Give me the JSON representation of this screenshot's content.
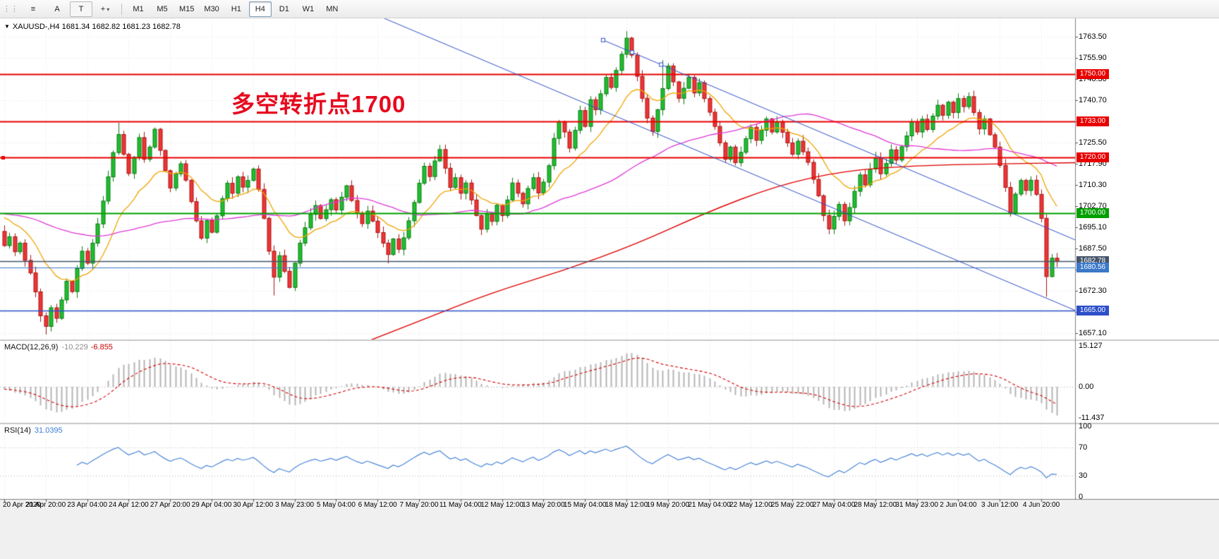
{
  "toolbar": {
    "grip_glyph": "⋮⋮",
    "tools": [
      {
        "name": "charts-list-icon",
        "glyph": "≡"
      },
      {
        "name": "cursor-tool-button",
        "glyph": "A"
      },
      {
        "name": "text-tool-button",
        "glyph": "T",
        "boxed": true
      },
      {
        "name": "crosshair-tool-button",
        "glyph": "+",
        "caret": "▾"
      }
    ],
    "timeframes": [
      "M1",
      "M5",
      "M15",
      "M30",
      "H1",
      "H4",
      "D1",
      "W1",
      "MN"
    ],
    "active_timeframe": "H4"
  },
  "chart": {
    "symbol_readout": "XAUUSD-,H4  1681.34 1682.82 1681.23 1682.78",
    "dropdown_glyph": "▼",
    "annotation": {
      "text": "多空转折点1700",
      "color": "#e60a1e"
    }
  },
  "chart_data": {
    "type": "candlestick",
    "symbol": "XAUUSD-",
    "period": "H4",
    "current_ohlc": {
      "open": 1681.34,
      "high": 1682.82,
      "low": 1681.23,
      "close": 1682.78
    },
    "open_first": 1693.5,
    "closes": [
      1688.4,
      1691.6,
      1686.2,
      1689.3,
      1683.1,
      1678.6,
      1671.8,
      1663.2,
      1659.4,
      1666.1,
      1662.3,
      1668.9,
      1675.6,
      1671.9,
      1680.2,
      1686.4,
      1682.1,
      1689.3,
      1696.2,
      1704.4,
      1713.1,
      1721.8,
      1728.3,
      1721.2,
      1714.3,
      1720.1,
      1727.2,
      1719.4,
      1723.8,
      1730.2,
      1722.6,
      1715.3,
      1709.1,
      1714.2,
      1717.8,
      1711.9,
      1704.2,
      1697.3,
      1691.1,
      1697.4,
      1693.2,
      1699.1,
      1705.3,
      1710.8,
      1707.2,
      1713.1,
      1709.4,
      1711.8,
      1715.9,
      1708.6,
      1698.2,
      1686.4,
      1677.1,
      1684.8,
      1679.2,
      1673.4,
      1682.1,
      1689.3,
      1694.8,
      1699.6,
      1702.8,
      1698.1,
      1701.3,
      1704.9,
      1701.2,
      1705.8,
      1709.9,
      1704.6,
      1700.1,
      1696.3,
      1700.8,
      1697.2,
      1693.1,
      1689.3,
      1685.2,
      1690.8,
      1687.1,
      1691.2,
      1697.3,
      1703.9,
      1710.8,
      1716.9,
      1713.2,
      1718.8,
      1722.9,
      1716.2,
      1709.3,
      1712.8,
      1707.2,
      1710.9,
      1704.8,
      1699.2,
      1694.3,
      1699.8,
      1697.1,
      1702.9,
      1699.2,
      1704.8,
      1710.9,
      1707.2,
      1703.4,
      1708.9,
      1712.8,
      1707.3,
      1711.2,
      1717.1,
      1726.9,
      1732.8,
      1729.2,
      1723.4,
      1729.8,
      1736.9,
      1731.2,
      1740.8,
      1737.2,
      1742.9,
      1748.8,
      1745.2,
      1751.3,
      1757.1,
      1762.9,
      1756.8,
      1749.2,
      1741.3,
      1734.2,
      1729.4,
      1737.2,
      1744.8,
      1752.9,
      1747.2,
      1741.3,
      1744.9,
      1748.8,
      1743.2,
      1746.9,
      1741.2,
      1736.3,
      1731.2,
      1725.3,
      1719.4,
      1723.8,
      1718.2,
      1721.9,
      1726.8,
      1730.9,
      1726.2,
      1729.8,
      1733.9,
      1729.2,
      1732.8,
      1729.1,
      1725.3,
      1721.2,
      1725.9,
      1722.1,
      1718.3,
      1712.2,
      1706.3,
      1699.2,
      1694.4,
      1698.9,
      1703.2,
      1697.3,
      1702.1,
      1707.9,
      1713.8,
      1710.2,
      1715.9,
      1719.8,
      1714.2,
      1717.9,
      1722.8,
      1719.1,
      1723.9,
      1727.8,
      1732.9,
      1729.2,
      1733.8,
      1730.1,
      1734.9,
      1738.8,
      1735.2,
      1739.9,
      1736.2,
      1741.2,
      1738.3,
      1741.9,
      1736.2,
      1730.3,
      1733.9,
      1728.2,
      1723.8,
      1717.2,
      1709.3,
      1700.2,
      1706.9,
      1711.8,
      1708.2,
      1711.9,
      1706.8,
      1698.2,
      1677.3,
      1683.9,
      1682.78
    ],
    "wick_overrides": [
      {
        "i": 8,
        "low": 1656.5
      },
      {
        "i": 22,
        "high": 1732.5
      },
      {
        "i": 52,
        "low": 1670.5
      },
      {
        "i": 74,
        "low": 1682.0
      },
      {
        "i": 120,
        "high": 1765.4
      },
      {
        "i": 127,
        "high": 1755.0
      },
      {
        "i": 201,
        "low": 1670.0
      }
    ],
    "price_axis": {
      "top_price": 1770.0,
      "bottom_price": 1654.7,
      "grid_prices": [
        1763.5,
        1755.9,
        1748.3,
        1740.7,
        1733.1,
        1725.5,
        1717.9,
        1710.3,
        1702.7,
        1695.1,
        1687.5,
        1679.9,
        1672.3,
        1664.7,
        1657.1
      ]
    },
    "time_axis": {
      "labels": [
        "20 Apr 2020",
        "21 Apr 20:00",
        "23 Apr 04:00",
        "24 Apr 12:00",
        "27 Apr 20:00",
        "29 Apr 04:00",
        "30 Apr 12:00",
        "3 May 23:00",
        "5 May 04:00",
        "6 May 12:00",
        "7 May 20:00",
        "11 May 04:00",
        "12 May 12:00",
        "13 May 20:00",
        "15 May 04:00",
        "18 May 12:00",
        "19 May 20:00",
        "21 May 04:00",
        "22 May 12:00",
        "25 May 22:00",
        "27 May 04:00",
        "28 May 12:00",
        "31 May 23:00",
        "2 Jun 04:00",
        "3 Jun 12:00",
        "4 Jun 20:00"
      ]
    },
    "hlines": [
      {
        "price": 1750.0,
        "label": "1750.00",
        "color": "#e80000",
        "width": 2,
        "badge_bg": "#e80000"
      },
      {
        "price": 1733.0,
        "label": "1733.00",
        "color": "#e80000",
        "width": 2,
        "badge_bg": "#e80000"
      },
      {
        "price": 1720.0,
        "label": "1720.00",
        "color": "#e80000",
        "width": 2,
        "badge_bg": "#e80000",
        "handle": true
      },
      {
        "price": 1700.0,
        "label": "1700.00",
        "color": "#00a000",
        "width": 2,
        "badge_bg": "#00a000"
      },
      {
        "price": 1682.78,
        "label": "1682.78",
        "color": "#44546a",
        "width": 1.5,
        "badge_bg": "#44546a"
      },
      {
        "price": 1680.56,
        "label": "1680.56",
        "color": "#3a78c9",
        "width": 1,
        "badge_bg": "#3a78c9"
      },
      {
        "price": 1665.0,
        "label": "1665.00",
        "color": "#2d4fc9",
        "width": 1.5,
        "badge_bg": "#2d4fc9"
      }
    ],
    "trendlines": [
      {
        "name": "descending-channel-lower",
        "i1": 73.3,
        "p1": 1770.0,
        "i2": 206.5,
        "p2": 1665.2,
        "color": "#3050c8",
        "width": 1
      },
      {
        "name": "descending-channel-upper",
        "i1": 115.5,
        "p1": 1762.2,
        "i2": 206.5,
        "p2": 1690.5,
        "color": "#3050c8",
        "width": 1,
        "handles": [
          {
            "i": 115.5,
            "p": 1762.2
          },
          {
            "i": 121.1,
            "p": 1757.8
          },
          {
            "i": 126.7,
            "p": 1753.4
          }
        ]
      }
    ],
    "moving_averages": {
      "prehistory": 1700,
      "orange": {
        "type": "ema",
        "period": 14,
        "color": "#f0a500"
      },
      "magenta": {
        "type": "sma",
        "period": 50,
        "color": "#e038d8"
      },
      "red_color": "#e00000",
      "red_points": [
        {
          "i": 70,
          "p": 1654.0
        },
        {
          "i": 81,
          "p": 1662.0
        },
        {
          "i": 94,
          "p": 1671.5
        },
        {
          "i": 108,
          "p": 1679.5
        },
        {
          "i": 122,
          "p": 1689.0
        },
        {
          "i": 135,
          "p": 1700.0
        },
        {
          "i": 149,
          "p": 1710.0
        },
        {
          "i": 162,
          "p": 1715.3
        },
        {
          "i": 176,
          "p": 1717.2
        },
        {
          "i": 190,
          "p": 1717.7
        },
        {
          "i": 207,
          "p": 1718.2
        }
      ]
    },
    "macd": {
      "title": "MACD(12,26,9)",
      "main_value": "-10.229",
      "signal_value": "-6.855",
      "fast": 12,
      "slow": 26,
      "signal": 9,
      "scale": [
        {
          "value": 15.127,
          "label": "15.127"
        },
        {
          "value": 0,
          "label": "0.00"
        },
        {
          "value": -11.437,
          "label": "-11.437"
        }
      ],
      "histogram_color": "#b4b4b4",
      "signal_color": "#d40000"
    },
    "rsi": {
      "title": "RSI(14)",
      "value": "31.0395",
      "period": 14,
      "levels": [
        100,
        70,
        30,
        0
      ],
      "level_lines": [
        70,
        30
      ],
      "line_color": "#4a86d8"
    }
  }
}
